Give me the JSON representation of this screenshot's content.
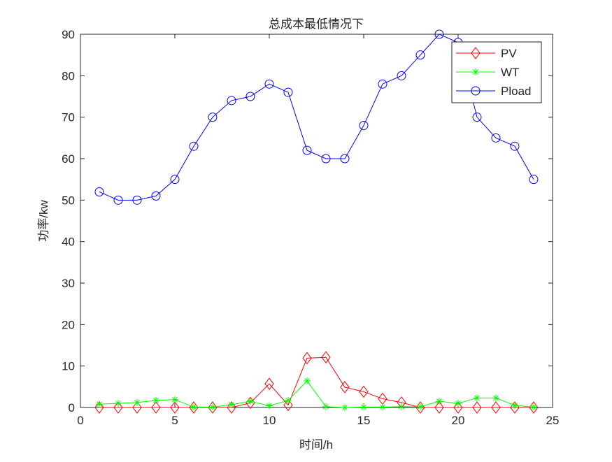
{
  "chart_data": {
    "type": "line",
    "title": "总成本最低情况下",
    "xlabel": "时间/h",
    "ylabel": "功率/kw",
    "xlim": [
      0,
      25
    ],
    "ylim": [
      0,
      90
    ],
    "xticks": [
      0,
      5,
      10,
      15,
      20,
      25
    ],
    "yticks": [
      0,
      10,
      20,
      30,
      40,
      50,
      60,
      70,
      80,
      90
    ],
    "grid": false,
    "legend_position": "top-right",
    "x": [
      1,
      2,
      3,
      4,
      5,
      6,
      7,
      8,
      9,
      10,
      11,
      12,
      13,
      14,
      15,
      16,
      17,
      18,
      19,
      20,
      21,
      22,
      23,
      24
    ],
    "series": [
      {
        "name": "PV",
        "color": "#ff0000",
        "marker": "diamond",
        "values": [
          0,
          0,
          0,
          0,
          0,
          0,
          0,
          0,
          1.1,
          5.7,
          0.6,
          11.9,
          12.1,
          4.9,
          3.8,
          2.1,
          1.2,
          0,
          0,
          0,
          0,
          0,
          0,
          0
        ]
      },
      {
        "name": "WT",
        "color": "#00ff00",
        "marker": "asterisk",
        "values": [
          0.8,
          1.0,
          1.2,
          1.7,
          1.9,
          0.1,
          0.1,
          0.7,
          1.5,
          0.4,
          1.7,
          6.4,
          0.2,
          0,
          0.1,
          0.1,
          0.2,
          0.2,
          1.5,
          1.0,
          2.3,
          2.3,
          0.5,
          0.1
        ]
      },
      {
        "name": "Pload",
        "color": "#0000ff",
        "marker": "circle",
        "values": [
          52,
          50,
          50,
          51,
          55,
          63,
          70,
          74,
          75,
          78,
          76,
          62,
          60,
          60,
          68,
          78,
          80,
          85,
          90,
          88,
          70,
          65,
          63,
          55
        ]
      }
    ]
  }
}
